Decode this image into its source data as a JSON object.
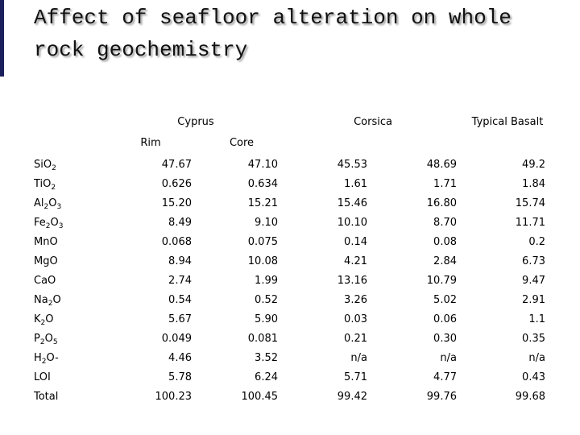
{
  "header": {
    "title": "Affect of seafloor alteration on whole rock geochemistry"
  },
  "table": {
    "groups": [
      "Cyprus",
      "Corsica",
      "Typical Basalt"
    ],
    "subheaders": [
      "Rim",
      "Core"
    ],
    "rows": [
      {
        "label": [
          {
            "text": "SiO"
          },
          {
            "sub": "2"
          }
        ],
        "values": [
          "47.67",
          "47.10",
          "45.53",
          "48.69",
          "49.2"
        ]
      },
      {
        "label": [
          {
            "text": "TiO"
          },
          {
            "sub": "2"
          }
        ],
        "values": [
          "0.626",
          "0.634",
          "1.61",
          "1.71",
          "1.84"
        ]
      },
      {
        "label": [
          {
            "text": "Al"
          },
          {
            "sub": "2"
          },
          {
            "text": "O"
          },
          {
            "sub": "3"
          }
        ],
        "values": [
          "15.20",
          "15.21",
          "15.46",
          "16.80",
          "15.74"
        ]
      },
      {
        "label": [
          {
            "text": "Fe"
          },
          {
            "sub": "2"
          },
          {
            "text": "O"
          },
          {
            "sub": "3"
          }
        ],
        "values": [
          "8.49",
          "9.10",
          "10.10",
          "8.70",
          "11.71"
        ]
      },
      {
        "label": [
          {
            "text": "MnO"
          }
        ],
        "values": [
          "0.068",
          "0.075",
          "0.14",
          "0.08",
          "0.2"
        ]
      },
      {
        "label": [
          {
            "text": "MgO"
          }
        ],
        "values": [
          "8.94",
          "10.08",
          "4.21",
          "2.84",
          "6.73"
        ]
      },
      {
        "label": [
          {
            "text": "CaO"
          }
        ],
        "values": [
          "2.74",
          "1.99",
          "13.16",
          "10.79",
          "9.47"
        ]
      },
      {
        "label": [
          {
            "text": "Na"
          },
          {
            "sub": "2"
          },
          {
            "text": "O"
          }
        ],
        "values": [
          "0.54",
          "0.52",
          "3.26",
          "5.02",
          "2.91"
        ]
      },
      {
        "label": [
          {
            "text": "K"
          },
          {
            "sub": "2"
          },
          {
            "text": "O"
          }
        ],
        "values": [
          "5.67",
          "5.90",
          "0.03",
          "0.06",
          "1.1"
        ]
      },
      {
        "label": [
          {
            "text": "P"
          },
          {
            "sub": "2"
          },
          {
            "text": "O"
          },
          {
            "sub": "5"
          }
        ],
        "values": [
          "0.049",
          "0.081",
          "0.21",
          "0.30",
          "0.35"
        ]
      },
      {
        "label": [
          {
            "text": "H"
          },
          {
            "sub": "2"
          },
          {
            "text": "O-"
          }
        ],
        "values": [
          "4.46",
          "3.52",
          "n/a",
          "n/a",
          "n/a"
        ]
      },
      {
        "label": [
          {
            "text": "LOI"
          }
        ],
        "values": [
          "5.78",
          "6.24",
          "5.71",
          "4.77",
          "0.43"
        ]
      },
      {
        "label": [
          {
            "text": "Total"
          }
        ],
        "values": [
          "100.23",
          "100.45",
          "99.42",
          "99.76",
          "99.68"
        ]
      }
    ]
  }
}
